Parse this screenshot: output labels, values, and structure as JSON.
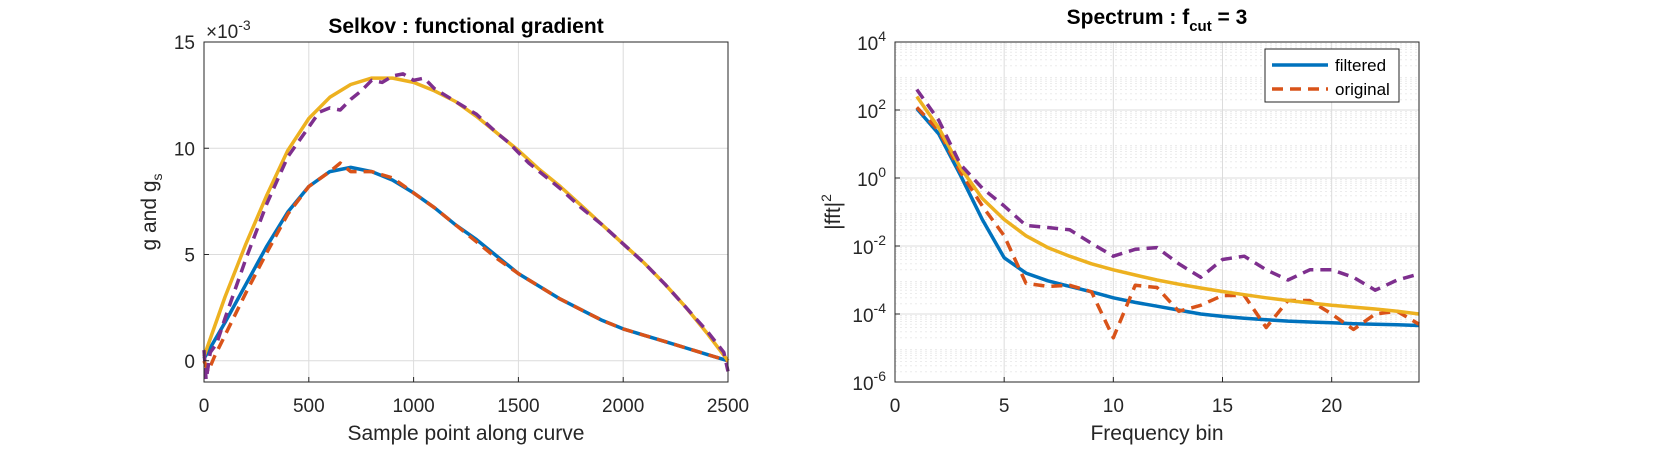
{
  "colors": {
    "blue": "#0072BD",
    "orange": "#D95319",
    "yellow": "#EDB120",
    "purple": "#7E2F8E",
    "grid": "#dcdcdc",
    "axis": "#262626"
  },
  "chart_data": [
    {
      "type": "line",
      "title": "Selkov : functional gradient",
      "xlabel": "Sample point along curve",
      "ylabel_main": "g and g",
      "ylabel_sub": "s",
      "exponent_label": "×10",
      "exponent_power": "-3",
      "xlim": [
        0,
        2500
      ],
      "ylim": [
        -0.001,
        0.015
      ],
      "xticks": [
        0,
        500,
        1000,
        1500,
        2000,
        2500
      ],
      "xtick_labels": [
        "0",
        "500",
        "1000",
        "1500",
        "2000",
        "2500"
      ],
      "yticks": [
        0,
        0.005,
        0.01,
        0.015
      ],
      "ytick_labels": [
        "0",
        "5",
        "10",
        "15"
      ],
      "grid": true,
      "series": [
        {
          "color": "#0072BD",
          "style": "solid",
          "x": [
            0,
            100,
            200,
            300,
            400,
            500,
            600,
            700,
            800,
            900,
            1000,
            1100,
            1200,
            1300,
            1400,
            1500,
            1600,
            1700,
            1800,
            1900,
            2000,
            2100,
            2200,
            2300,
            2400,
            2500
          ],
          "y": [
            0.0001,
            0.0018,
            0.0036,
            0.0054,
            0.007,
            0.0082,
            0.0089,
            0.0091,
            0.0089,
            0.0085,
            0.0079,
            0.0072,
            0.0064,
            0.0057,
            0.0049,
            0.0041,
            0.0035,
            0.0029,
            0.0024,
            0.0019,
            0.0015,
            0.0012,
            0.0009,
            0.0006,
            0.0003,
            0.0
          ]
        },
        {
          "color": "#D95319",
          "style": "dashed",
          "x": [
            0,
            20,
            50,
            100,
            200,
            300,
            400,
            500,
            600,
            650,
            700,
            800,
            900,
            1000,
            1100,
            1200,
            1300,
            1400,
            1500,
            1600,
            1700,
            1800,
            1900,
            2000,
            2100,
            2200,
            2300,
            2400,
            2500
          ],
          "y": [
            0.0,
            -0.0005,
            0.0002,
            0.0012,
            0.0032,
            0.0051,
            0.0069,
            0.0082,
            0.0089,
            0.0093,
            0.0089,
            0.0089,
            0.0086,
            0.0079,
            0.0072,
            0.0064,
            0.0056,
            0.0048,
            0.0041,
            0.0035,
            0.0029,
            0.0024,
            0.0019,
            0.0015,
            0.0012,
            0.0009,
            0.0006,
            0.0003,
            0.0
          ]
        },
        {
          "color": "#EDB120",
          "style": "solid",
          "x": [
            0,
            100,
            200,
            300,
            400,
            500,
            600,
            700,
            800,
            900,
            1000,
            1100,
            1200,
            1300,
            1400,
            1500,
            1600,
            1700,
            1800,
            1900,
            2000,
            2100,
            2200,
            2300,
            2400,
            2500
          ],
          "y": [
            0.0002,
            0.003,
            0.0055,
            0.0078,
            0.0099,
            0.0114,
            0.0124,
            0.013,
            0.0133,
            0.0133,
            0.0131,
            0.0127,
            0.0122,
            0.0115,
            0.0107,
            0.0099,
            0.009,
            0.0082,
            0.0073,
            0.0064,
            0.0055,
            0.0046,
            0.0036,
            0.0025,
            0.0013,
            0.0
          ]
        },
        {
          "color": "#7E2F8E",
          "style": "dashed",
          "x": [
            0,
            10,
            30,
            60,
            100,
            200,
            300,
            400,
            500,
            550,
            600,
            650,
            700,
            750,
            800,
            850,
            900,
            950,
            1000,
            1050,
            1100,
            1200,
            1300,
            1400,
            1450,
            1500,
            1550,
            1600,
            1700,
            1800,
            1900,
            2000,
            2100,
            2200,
            2300,
            2400,
            2480,
            2500
          ],
          "y": [
            0.0005,
            -0.0009,
            0.0004,
            0.0008,
            0.002,
            0.0048,
            0.0074,
            0.0096,
            0.011,
            0.0117,
            0.0119,
            0.0118,
            0.0123,
            0.0127,
            0.0132,
            0.0131,
            0.0134,
            0.0135,
            0.0132,
            0.0133,
            0.0128,
            0.0122,
            0.0116,
            0.0107,
            0.0103,
            0.0098,
            0.0093,
            0.0089,
            0.0081,
            0.0072,
            0.0064,
            0.0055,
            0.0046,
            0.0036,
            0.0025,
            0.0014,
            0.0004,
            -0.0005
          ]
        }
      ]
    },
    {
      "type": "line",
      "title_main": "Spectrum : f",
      "title_sub": "cut",
      "title_tail": " = 3",
      "xlabel": "Frequency bin",
      "ylabel_main": "|fft|",
      "ylabel_sup": "2",
      "xlim": [
        0,
        24
      ],
      "ylim": [
        1e-06,
        10000.0
      ],
      "yscale": "log",
      "xticks": [
        0,
        5,
        10,
        15,
        20
      ],
      "xtick_labels": [
        "0",
        "5",
        "10",
        "15",
        "20"
      ],
      "yticks": [
        1e-06,
        0.0001,
        0.01,
        1,
        100,
        10000
      ],
      "ytick_base": "10",
      "ytick_exponents": [
        "-6",
        "-4",
        "-2",
        "0",
        "2",
        "4"
      ],
      "grid": true,
      "legend": {
        "position": "top-right",
        "entries": [
          {
            "label": "filtered",
            "color": "#0072BD",
            "style": "solid"
          },
          {
            "label": "original",
            "color": "#D95319",
            "style": "dashed"
          }
        ]
      },
      "series": [
        {
          "name": "filtered",
          "color": "#0072BD",
          "style": "solid",
          "x": [
            1,
            2,
            3,
            4,
            5,
            6,
            7,
            8,
            9,
            10,
            11,
            12,
            13,
            14,
            15,
            16,
            17,
            18,
            19,
            20,
            21,
            22,
            23,
            24
          ],
          "y": [
            110,
            20,
            1.2,
            0.06,
            0.0045,
            0.0016,
            0.00095,
            0.00065,
            0.00045,
            0.0003,
            0.00022,
            0.00017,
            0.00013,
            0.0001,
            8.5e-05,
            7.5e-05,
            6.8e-05,
            6.2e-05,
            5.8e-05,
            5.5e-05,
            5.2e-05,
            5e-05,
            4.8e-05,
            4.6e-05
          ]
        },
        {
          "name": "original",
          "color": "#D95319",
          "style": "dashed",
          "x": [
            1,
            2,
            3,
            4,
            5,
            6,
            7,
            8,
            9,
            10,
            11,
            12,
            13,
            14,
            15,
            16,
            17,
            18,
            19,
            20,
            21,
            22,
            23,
            24
          ],
          "y": [
            120,
            25,
            1.5,
            0.15,
            0.02,
            0.0008,
            0.00065,
            0.0007,
            0.00045,
            2e-05,
            0.0007,
            0.0006,
            0.00012,
            0.00018,
            0.00035,
            0.00035,
            4e-05,
            0.00025,
            0.00025,
            0.0001,
            3.5e-05,
            0.0001,
            0.00012,
            5e-05
          ]
        },
        {
          "color": "#EDB120",
          "style": "solid",
          "x": [
            1,
            2,
            3,
            4,
            5,
            6,
            7,
            8,
            9,
            10,
            11,
            12,
            13,
            14,
            15,
            16,
            17,
            18,
            19,
            20,
            21,
            22,
            23,
            24
          ],
          "y": [
            250,
            30,
            2,
            0.25,
            0.06,
            0.02,
            0.009,
            0.005,
            0.003,
            0.002,
            0.0014,
            0.001,
            0.00075,
            0.00058,
            0.00046,
            0.00037,
            0.0003,
            0.00025,
            0.00021,
            0.00018,
            0.00016,
            0.00014,
            0.00012,
            0.0001
          ]
        },
        {
          "color": "#7E2F8E",
          "style": "dashed",
          "x": [
            1,
            2,
            3,
            4,
            5,
            6,
            7,
            8,
            9,
            10,
            11,
            12,
            13,
            14,
            15,
            16,
            17,
            18,
            19,
            20,
            21,
            22,
            23,
            24
          ],
          "y": [
            400,
            50,
            2.5,
            0.5,
            0.15,
            0.04,
            0.035,
            0.03,
            0.012,
            0.005,
            0.008,
            0.009,
            0.003,
            0.0012,
            0.004,
            0.005,
            0.002,
            0.001,
            0.002,
            0.002,
            0.0012,
            0.0005,
            0.001,
            0.0015
          ]
        }
      ]
    }
  ]
}
